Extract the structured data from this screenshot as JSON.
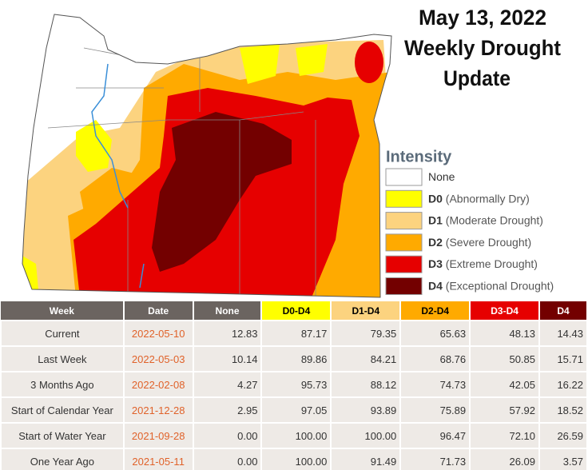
{
  "title": [
    "May 13, 2022",
    "Weekly Drought",
    "Update"
  ],
  "legend": {
    "title": "Intensity",
    "items": [
      {
        "label": "None",
        "color": "#ffffff"
      },
      {
        "code": "D0",
        "label": "(Abnormally Dry)",
        "color": "#ffff00"
      },
      {
        "code": "D1",
        "label": "(Moderate Drought)",
        "color": "#fcd37f"
      },
      {
        "code": "D2",
        "label": "(Severe Drought)",
        "color": "#ffaa00"
      },
      {
        "code": "D3",
        "label": "(Extreme Drought)",
        "color": "#e60000"
      },
      {
        "code": "D4",
        "label": "(Exceptional Drought)",
        "color": "#730000"
      }
    ]
  },
  "table": {
    "columns": [
      {
        "label": "Week",
        "color": "#6b6460",
        "text_color": "#ffffff"
      },
      {
        "label": "Date",
        "color": "#6b6460",
        "text_color": "#ffffff"
      },
      {
        "label": "None",
        "color": "#6b6460",
        "text_color": "#ffffff"
      },
      {
        "label": "D0-D4",
        "color": "#ffff00",
        "text_color": "#000000"
      },
      {
        "label": "D1-D4",
        "color": "#fcd37f",
        "text_color": "#000000"
      },
      {
        "label": "D2-D4",
        "color": "#ffaa00",
        "text_color": "#000000"
      },
      {
        "label": "D3-D4",
        "color": "#e60000",
        "text_color": "#ffffff"
      },
      {
        "label": "D4",
        "color": "#730000",
        "text_color": "#ffffff"
      }
    ],
    "rows": [
      [
        "Current",
        "2022-05-10",
        "12.83",
        "87.17",
        "79.35",
        "65.63",
        "48.13",
        "14.43"
      ],
      [
        "Last Week",
        "2022-05-03",
        "10.14",
        "89.86",
        "84.21",
        "68.76",
        "50.85",
        "15.71"
      ],
      [
        "3 Months Ago",
        "2022-02-08",
        "4.27",
        "95.73",
        "88.12",
        "74.73",
        "42.05",
        "16.22"
      ],
      [
        "Start of Calendar Year",
        "2021-12-28",
        "2.95",
        "97.05",
        "93.89",
        "75.89",
        "57.92",
        "18.52"
      ],
      [
        "Start of Water Year",
        "2021-09-28",
        "0.00",
        "100.00",
        "100.00",
        "96.47",
        "72.10",
        "26.59"
      ],
      [
        "One Year Ago",
        "2021-05-11",
        "0.00",
        "100.00",
        "91.49",
        "71.73",
        "26.09",
        "3.57"
      ]
    ]
  }
}
